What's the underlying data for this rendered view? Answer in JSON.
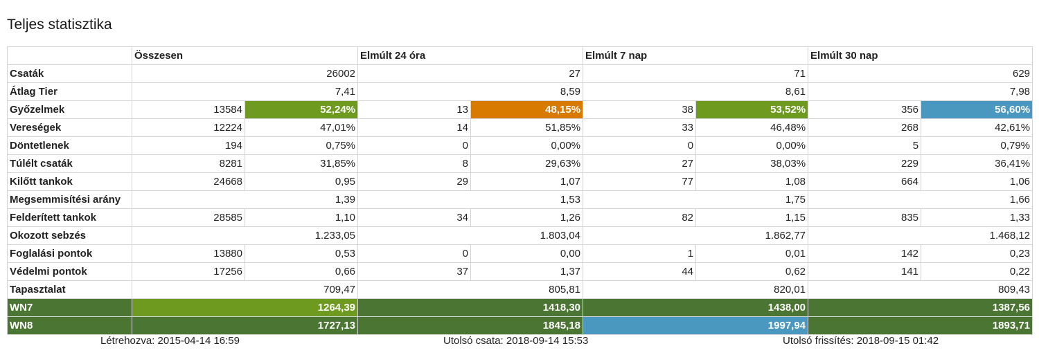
{
  "title": "Teljes statisztika",
  "columns": [
    "Összesen",
    "Elmúlt 24 óra",
    "Elmúlt 7 nap",
    "Elmúlt 30 nap"
  ],
  "colors": {
    "green": "#6e9a1f",
    "orange": "#d97a00",
    "blue": "#4a97bf",
    "darkgreen": "#4a7532"
  },
  "rows": [
    {
      "label": "Csaták",
      "type": "single",
      "cells": [
        {
          "v": "26002"
        },
        {
          "v": "27"
        },
        {
          "v": "71"
        },
        {
          "v": "629"
        }
      ]
    },
    {
      "label": "Átlag Tier",
      "type": "single",
      "cells": [
        {
          "v": "7,41"
        },
        {
          "v": "8,59"
        },
        {
          "v": "8,61"
        },
        {
          "v": "7,98"
        }
      ]
    },
    {
      "label": "Győzelmek",
      "type": "pair",
      "cells": [
        {
          "a": "13584",
          "b": "52,24%",
          "color": "green"
        },
        {
          "a": "13",
          "b": "48,15%",
          "color": "orange"
        },
        {
          "a": "38",
          "b": "53,52%",
          "color": "green"
        },
        {
          "a": "356",
          "b": "56,60%",
          "color": "blue"
        }
      ]
    },
    {
      "label": "Vereségek",
      "type": "pair",
      "cells": [
        {
          "a": "12224",
          "b": "47,01%"
        },
        {
          "a": "14",
          "b": "51,85%"
        },
        {
          "a": "33",
          "b": "46,48%"
        },
        {
          "a": "268",
          "b": "42,61%"
        }
      ]
    },
    {
      "label": "Döntetlenek",
      "type": "pair",
      "cells": [
        {
          "a": "194",
          "b": "0,75%"
        },
        {
          "a": "0",
          "b": "0,00%"
        },
        {
          "a": "0",
          "b": "0,00%"
        },
        {
          "a": "5",
          "b": "0,79%"
        }
      ]
    },
    {
      "label": "Túlélt csaták",
      "type": "pair",
      "cells": [
        {
          "a": "8281",
          "b": "31,85%"
        },
        {
          "a": "8",
          "b": "29,63%"
        },
        {
          "a": "27",
          "b": "38,03%"
        },
        {
          "a": "229",
          "b": "36,41%"
        }
      ]
    },
    {
      "label": "Kilőtt tankok",
      "type": "pair",
      "cells": [
        {
          "a": "24668",
          "b": "0,95"
        },
        {
          "a": "29",
          "b": "1,07"
        },
        {
          "a": "77",
          "b": "1,08"
        },
        {
          "a": "664",
          "b": "1,06"
        }
      ]
    },
    {
      "label": "Megsemmisítési arány",
      "type": "single",
      "cells": [
        {
          "v": "1,39"
        },
        {
          "v": "1,53"
        },
        {
          "v": "1,75"
        },
        {
          "v": "1,66"
        }
      ]
    },
    {
      "label": "Felderített tankok",
      "type": "pair",
      "cells": [
        {
          "a": "28585",
          "b": "1,10"
        },
        {
          "a": "34",
          "b": "1,26"
        },
        {
          "a": "82",
          "b": "1,15"
        },
        {
          "a": "835",
          "b": "1,33"
        }
      ]
    },
    {
      "label": "Okozott sebzés",
      "type": "single",
      "cells": [
        {
          "v": "1.233,05"
        },
        {
          "v": "1.803,04"
        },
        {
          "v": "1.862,77"
        },
        {
          "v": "1.468,12"
        }
      ]
    },
    {
      "label": "Foglalási pontok",
      "type": "pair",
      "cells": [
        {
          "a": "13880",
          "b": "0,53"
        },
        {
          "a": "0",
          "b": "0,00"
        },
        {
          "a": "1",
          "b": "0,01"
        },
        {
          "a": "142",
          "b": "0,23"
        }
      ]
    },
    {
      "label": "Védelmi pontok",
      "type": "pair",
      "cells": [
        {
          "a": "17256",
          "b": "0,66"
        },
        {
          "a": "37",
          "b": "1,37"
        },
        {
          "a": "44",
          "b": "0,62"
        },
        {
          "a": "141",
          "b": "0,22"
        }
      ]
    },
    {
      "label": "Tapasztalat",
      "type": "single",
      "cells": [
        {
          "v": "709,47"
        },
        {
          "v": "805,81"
        },
        {
          "v": "820,01"
        },
        {
          "v": "809,43"
        }
      ]
    },
    {
      "label": "WN7",
      "type": "single",
      "labelColor": "darkgreen",
      "cells": [
        {
          "v": "1264,39",
          "color": "green"
        },
        {
          "v": "1418,30",
          "color": "darkgreen"
        },
        {
          "v": "1438,00",
          "color": "darkgreen"
        },
        {
          "v": "1387,56",
          "color": "darkgreen"
        }
      ]
    },
    {
      "label": "WN8",
      "type": "single",
      "labelColor": "darkgreen",
      "cells": [
        {
          "v": "1727,13",
          "color": "darkgreen"
        },
        {
          "v": "1845,18",
          "color": "darkgreen"
        },
        {
          "v": "1997,94",
          "color": "blue"
        },
        {
          "v": "1893,71",
          "color": "darkgreen"
        }
      ]
    }
  ],
  "footer": {
    "created": "Létrehozva: 2015-04-14 16:59",
    "last_battle": "Utolsó csata: 2018-09-14 15:53",
    "last_update": "Utolsó frissítés: 2018-09-15 01:42"
  }
}
